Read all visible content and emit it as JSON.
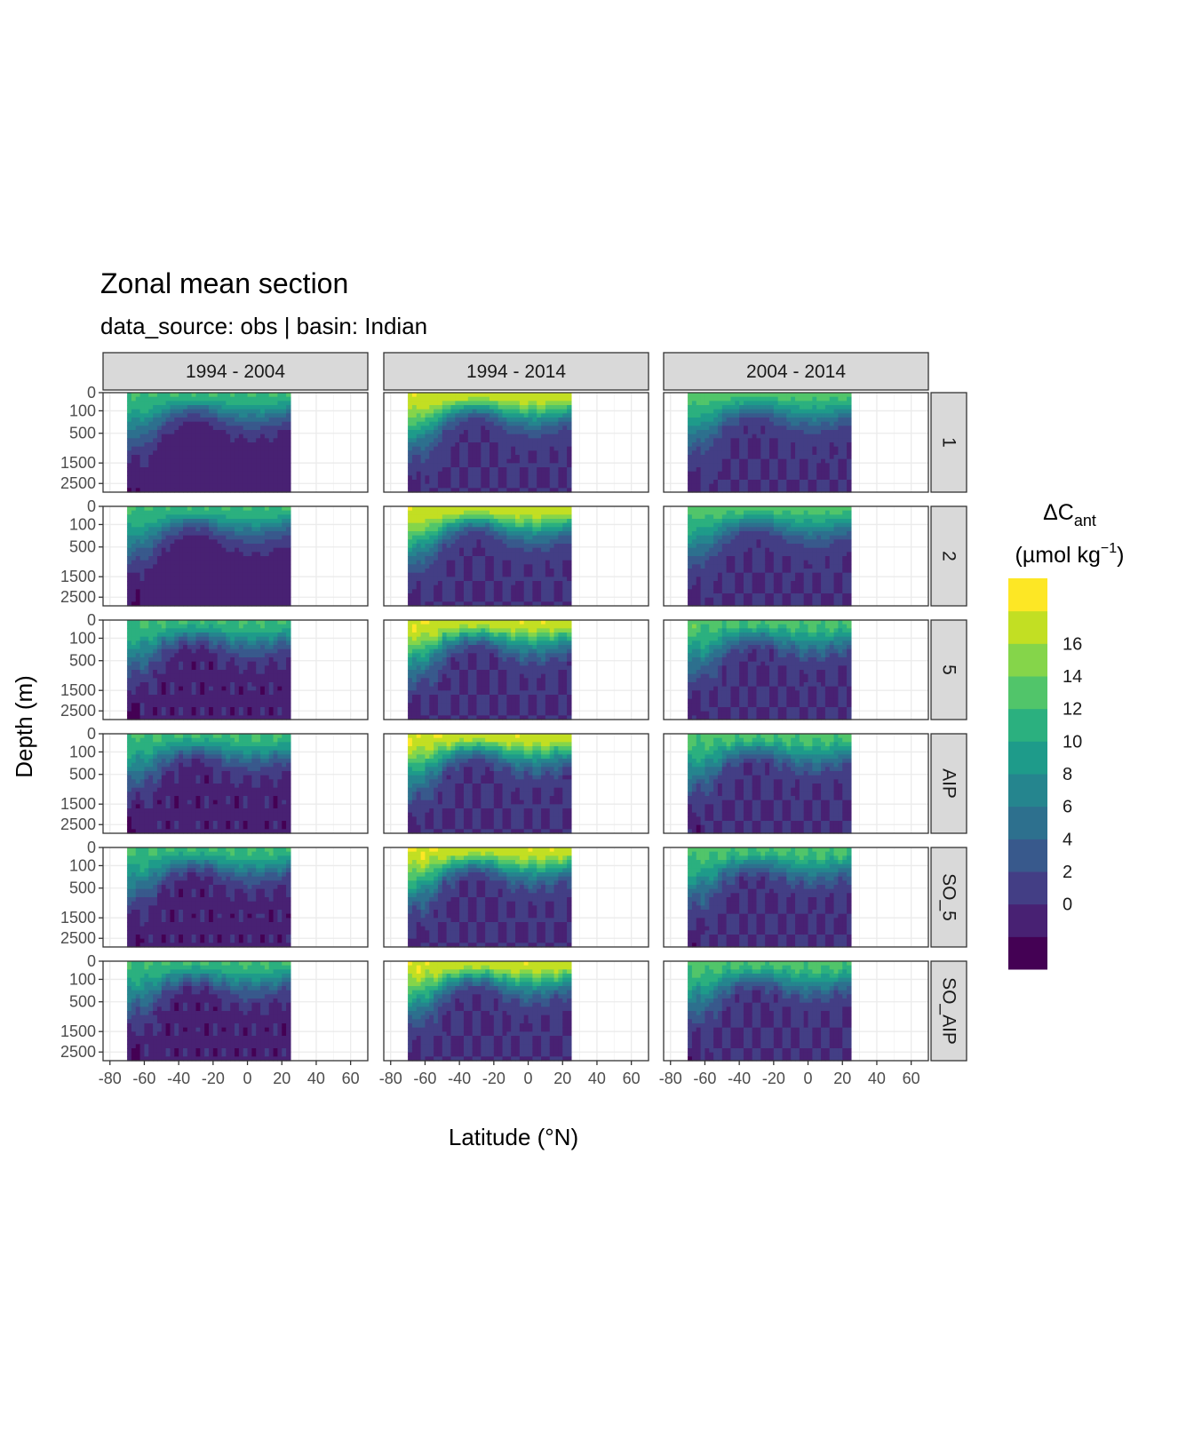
{
  "chart_data": {
    "type": "heatmap",
    "title": "Zonal mean section",
    "subtitle": "data_source:  obs | basin: Indian",
    "xlabel": "Latitude (°N)",
    "ylabel": "Depth (m)",
    "legend": {
      "title_main": "ΔC",
      "title_sub": "ant",
      "unit_prefix": "(µmol kg",
      "unit_sup": "−1",
      "unit_suffix": ")",
      "placement": "right",
      "labels": [
        "16",
        "14",
        "12",
        "10",
        "8",
        "6",
        "4",
        "2",
        "0"
      ],
      "colors": [
        "#440154",
        "#482173",
        "#433E85",
        "#38598C",
        "#2D708E",
        "#25858E",
        "#1E9B8A",
        "#2BB07F",
        "#51C56A",
        "#85D54A",
        "#C2DF23",
        "#FDE725"
      ]
    },
    "columns": [
      "1994 - 2004",
      "1994 - 2014",
      "2004 - 2014"
    ],
    "rows": [
      "1",
      "2",
      "5",
      "AIP",
      "SO_5",
      "SO_AIP"
    ],
    "x_ticks": [
      "-80",
      "-60",
      "-40",
      "-20",
      "0",
      "20",
      "40",
      "60"
    ],
    "x_tick_values": [
      -80,
      -60,
      -40,
      -20,
      0,
      20,
      40,
      60
    ],
    "xlim": [
      -84,
      70
    ],
    "data_lat_range": [
      -70,
      25
    ],
    "y_ticks": [
      "0",
      "100",
      "500",
      "1500",
      "2500"
    ],
    "y_tick_values": [
      0,
      100,
      500,
      1500,
      2500
    ],
    "ylim": [
      3000,
      0
    ],
    "y_scale": "reversed sqrt",
    "grid": true,
    "cant_by_panel": {
      "1994 - 2004": {
        "surface_max": 12,
        "deep_min": -1
      },
      "1994 - 2014": {
        "surface_max": 18,
        "deep_min": 0
      },
      "2004 - 2014": {
        "surface_max": 13,
        "deep_min": 0
      }
    }
  }
}
